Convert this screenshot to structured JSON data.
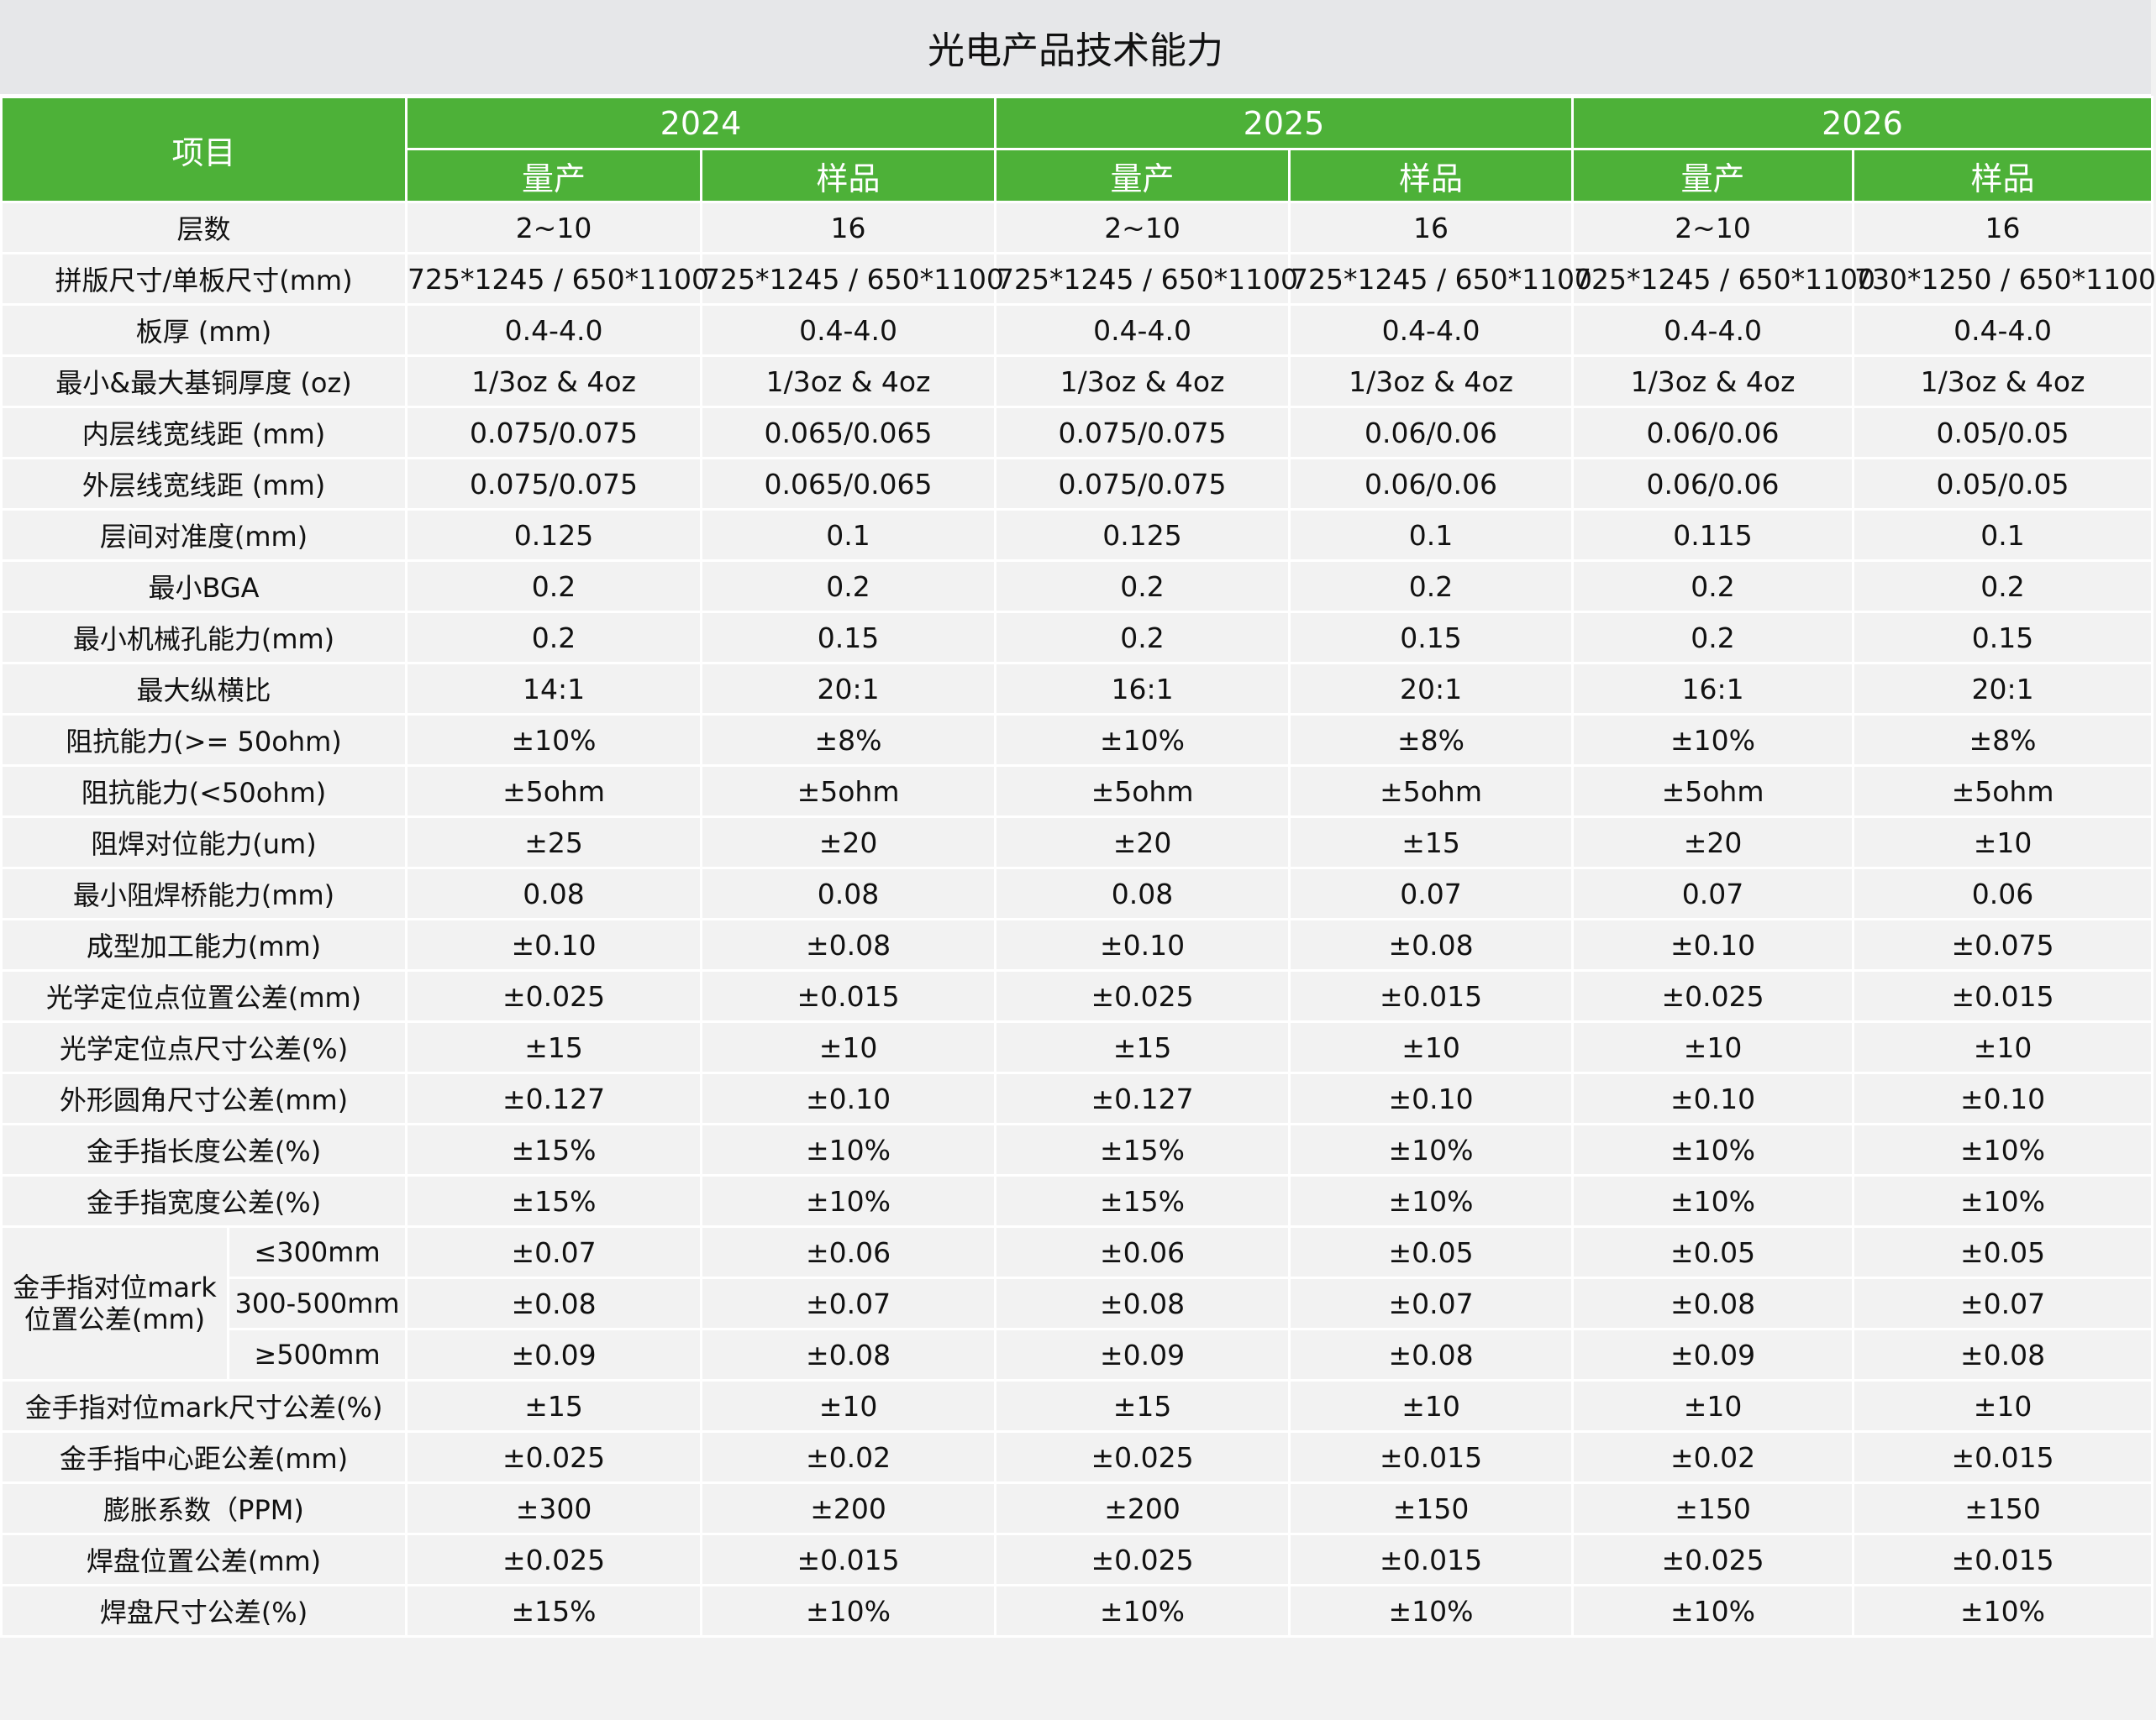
{
  "title": "光电产品技术能力",
  "header": {
    "item": "项目",
    "years": [
      "2024",
      "2025",
      "2026"
    ],
    "sub": [
      "量产",
      "样品",
      "量产",
      "样品",
      "量产",
      "样品"
    ]
  },
  "rows": [
    {
      "label": "层数",
      "values": [
        "2~10",
        "16",
        "2~10",
        "16",
        "2~10",
        "16"
      ]
    },
    {
      "label": "拼版尺寸/单板尺寸(mm)",
      "values": [
        "725*1245 / 650*1100",
        "725*1245 / 650*1100",
        "725*1245 / 650*1100",
        "725*1245 / 650*1100",
        "725*1245 / 650*1100",
        "730*1250 / 650*1100"
      ]
    },
    {
      "label": "板厚 (mm)",
      "values": [
        "0.4-4.0",
        "0.4-4.0",
        "0.4-4.0",
        "0.4-4.0",
        "0.4-4.0",
        "0.4-4.0"
      ]
    },
    {
      "label": "最小&最大基铜厚度 (oz)",
      "values": [
        "1/3oz & 4oz",
        "1/3oz & 4oz",
        "1/3oz & 4oz",
        "1/3oz & 4oz",
        "1/3oz & 4oz",
        "1/3oz & 4oz"
      ]
    },
    {
      "label": "内层线宽线距 (mm)",
      "values": [
        "0.075/0.075",
        "0.065/0.065",
        "0.075/0.075",
        "0.06/0.06",
        "0.06/0.06",
        "0.05/0.05"
      ]
    },
    {
      "label": "外层线宽线距 (mm)",
      "values": [
        "0.075/0.075",
        "0.065/0.065",
        "0.075/0.075",
        "0.06/0.06",
        "0.06/0.06",
        "0.05/0.05"
      ]
    },
    {
      "label": "层间对准度(mm)",
      "values": [
        "0.125",
        "0.1",
        "0.125",
        "0.1",
        "0.115",
        "0.1"
      ]
    },
    {
      "label": "最小BGA",
      "values": [
        "0.2",
        "0.2",
        "0.2",
        "0.2",
        "0.2",
        "0.2"
      ]
    },
    {
      "label": "最小机械孔能力(mm)",
      "values": [
        "0.2",
        "0.15",
        "0.2",
        "0.15",
        "0.2",
        "0.15"
      ]
    },
    {
      "label": "最大纵横比",
      "values": [
        "14:1",
        "20:1",
        "16:1",
        "20:1",
        "16:1",
        "20:1"
      ]
    },
    {
      "label": "阻抗能力(>= 50ohm)",
      "values": [
        "±10%",
        "±8%",
        "±10%",
        "±8%",
        "±10%",
        "±8%"
      ]
    },
    {
      "label": "阻抗能力(<50ohm)",
      "values": [
        "±5ohm",
        "±5ohm",
        "±5ohm",
        "±5ohm",
        "±5ohm",
        "±5ohm"
      ]
    },
    {
      "label": "阻焊对位能力(um)",
      "values": [
        "±25",
        "±20",
        "±20",
        "±15",
        "±20",
        "±10"
      ]
    },
    {
      "label": "最小阻焊桥能力(mm)",
      "values": [
        "0.08",
        "0.08",
        "0.08",
        "0.07",
        "0.07",
        "0.06"
      ]
    },
    {
      "label": "成型加工能力(mm)",
      "values": [
        "±0.10",
        "±0.08",
        "±0.10",
        "±0.08",
        "±0.10",
        "±0.075"
      ]
    },
    {
      "label": "光学定位点位置公差(mm)",
      "values": [
        "±0.025",
        "±0.015",
        "±0.025",
        "±0.015",
        "±0.025",
        "±0.015"
      ]
    },
    {
      "label": "光学定位点尺寸公差(%)",
      "values": [
        "±15",
        "±10",
        "±15",
        "±10",
        "±10",
        "±10"
      ]
    },
    {
      "label": "外形圆角尺寸公差(mm)",
      "values": [
        "±0.127",
        "±0.10",
        "±0.127",
        "±0.10",
        "±0.10",
        "±0.10"
      ]
    },
    {
      "label": "金手指长度公差(%)",
      "values": [
        "±15%",
        "±10%",
        "±15%",
        "±10%",
        "±10%",
        "±10%"
      ]
    },
    {
      "label": "金手指宽度公差(%)",
      "values": [
        "±15%",
        "±10%",
        "±15%",
        "±10%",
        "±10%",
        "±10%"
      ]
    }
  ],
  "group": {
    "label": "金手指对位mark位置公差(mm)",
    "subrows": [
      {
        "label": "≤300mm",
        "values": [
          "±0.07",
          "±0.06",
          "±0.06",
          "±0.05",
          "±0.05",
          "±0.05"
        ]
      },
      {
        "label": "300-500mm",
        "values": [
          "±0.08",
          "±0.07",
          "±0.08",
          "±0.07",
          "±0.08",
          "±0.07"
        ]
      },
      {
        "label": "≥500mm",
        "values": [
          "±0.09",
          "±0.08",
          "±0.09",
          "±0.08",
          "±0.09",
          "±0.08"
        ]
      }
    ]
  },
  "rows_after": [
    {
      "label": "金手指对位mark尺寸公差(%)",
      "values": [
        "±15",
        "±10",
        "±15",
        "±10",
        "±10",
        "±10"
      ]
    },
    {
      "label": "金手指中心距公差(mm)",
      "values": [
        "±0.025",
        "±0.02",
        "±0.025",
        "±0.015",
        "±0.02",
        "±0.015"
      ]
    },
    {
      "label": "膨胀系数（PPM)",
      "values": [
        "±300",
        "±200",
        "±200",
        "±150",
        "±150",
        "±150"
      ]
    },
    {
      "label": "焊盘位置公差(mm)",
      "values": [
        "±0.025",
        "±0.015",
        "±0.025",
        "±0.015",
        "±0.025",
        "±0.015"
      ]
    },
    {
      "label": "焊盘尺寸公差(%)",
      "values": [
        "±15%",
        "±10%",
        "±10%",
        "±10%",
        "±10%",
        "±10%"
      ]
    }
  ],
  "colors": {
    "header_green": "#4db138",
    "cell_bg": "#f2f2f2",
    "title_bg": "#e6e7e9"
  }
}
